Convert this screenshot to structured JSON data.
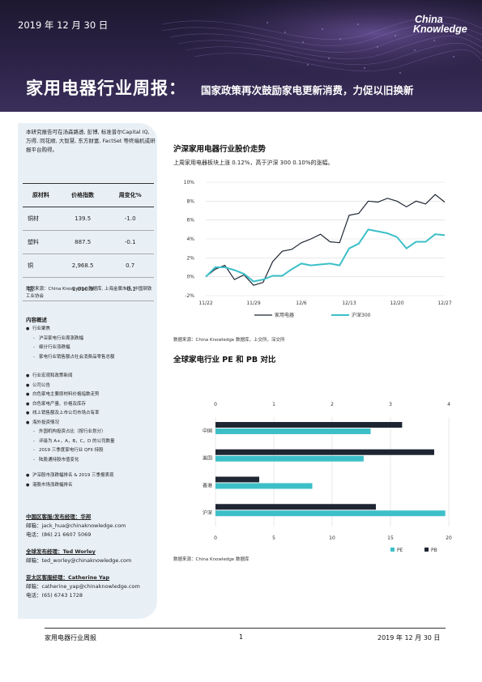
{
  "header": {
    "date": "2019 年 12 月 30 日",
    "logo_line1": "China",
    "logo_line2": "Knowledge",
    "title_main": "家用电器行业周报：",
    "title_sub": "国家政策再次鼓励家电更新消费，力促以旧换新"
  },
  "sidebar": {
    "intro": "本研究报告可在汤森路透, 彭博, 标准普尔Capital IQ, 万得, 同花顺, 大智慧, 东方财富, FactSet 等终端机或研报平台购得。",
    "table_headers": [
      "原材料",
      "价格指数",
      "周变化%"
    ],
    "table_rows": [
      {
        "name": "铜材",
        "price": "139.5",
        "change": "-1.0"
      },
      {
        "name": "塑料",
        "price": "887.5",
        "change": "-0.1"
      },
      {
        "name": "铜",
        "price": "2,968.5",
        "change": "0.7"
      },
      {
        "name": "铝",
        "price": "1,010.9",
        "change": "-0.1"
      }
    ],
    "table_source": "数据来源：China Knowledge 数据库, 上海金属市场, 中国钢铁工业协会",
    "toc_title": "内容概述",
    "toc_group1": [
      "行业聚焦",
      "沪深家电行业周涨跌幅",
      "细分行业涨跌幅",
      "家电行业销售额占社会消费品零售总额"
    ],
    "toc_group2": [
      "行业宏观和政策新闻",
      "公司公告",
      "白色家电主要原材料价格指数走势",
      "白色家电产量、价格及库存",
      "线上销售额及上市公司市场占有率",
      "海外投资情况",
      "外国机构投资占比（按行业划分）",
      "评级为 A+，A，B，C，D 的公司数量",
      "2019 三季度家电行业 QFII 持股",
      "陆股通持股市值变化"
    ],
    "toc_group3": [
      "沪深股市涨跌幅排名 & 2019 三季报表现",
      "港股市场涨跌幅排名"
    ],
    "contacts": [
      {
        "title": "中国区客服/发布经理：华邦",
        "email": "邮箱：jack_hua@chinaknowledge.com",
        "phone": "电话：(86) 21 6607 5069"
      },
      {
        "title": "全球发布经理：Ted Worley",
        "email": "邮箱：ted_worley@chinaknowledge.com",
        "phone": ""
      },
      {
        "title": "亚太区客服经理：Catherine Yap",
        "email": "邮箱：catherine_yap@chinaknowledge.com",
        "phone": "电话：(65) 6743 1728"
      }
    ]
  },
  "section1": {
    "heading": "沪深家用电器行业股价走势",
    "text": "上周家用电器板块上涨 0.12%，高于沪深 300 0.10%的涨幅。",
    "source": "数据来源：China Knowledge 数据库，上交所，深交所"
  },
  "section2": {
    "heading": "全球家电行业 PE 和 PB 对比",
    "source": "数据来源：China Knowledge 数据库"
  },
  "footer": {
    "left": "家用电器行业周报",
    "page": "1",
    "right": "2019 年 12 月 30 日"
  },
  "colors": {
    "dark": "#1f2633",
    "teal": "#3dbfc8"
  },
  "chart_data": [
    {
      "type": "line",
      "title": "",
      "x_tick_labels": [
        "11/22",
        "11/29",
        "12/6",
        "12/13",
        "12/20",
        "12/27"
      ],
      "y_ticks": [
        "-2%",
        "0%",
        "2%",
        "4%",
        "6%",
        "8%",
        "10%"
      ],
      "ylim": [
        -2,
        10
      ],
      "legend_position": "bottom",
      "series": [
        {
          "name": "家用电器",
          "color": "#1f2633",
          "values": [
            0.0,
            0.8,
            1.2,
            -0.3,
            0.2,
            -0.9,
            -0.6,
            1.6,
            2.7,
            2.9,
            3.6,
            4.0,
            4.5,
            3.7,
            3.6,
            6.5,
            6.7,
            8.0,
            7.9,
            8.3,
            8.0,
            7.4,
            8.0,
            7.7,
            8.7,
            7.9
          ]
        },
        {
          "name": "沪深300",
          "color": "#3dbfc8",
          "values": [
            0.0,
            1.0,
            1.0,
            0.7,
            0.3,
            -0.5,
            -0.3,
            0.1,
            0.1,
            0.8,
            1.4,
            1.2,
            1.3,
            1.4,
            1.2,
            3.0,
            3.5,
            5.0,
            4.8,
            4.6,
            4.2,
            3.0,
            3.7,
            3.7,
            4.5,
            4.4
          ]
        }
      ]
    },
    {
      "type": "bar",
      "orientation": "horizontal",
      "categories": [
        "中国",
        "美国",
        "香港",
        "沪深"
      ],
      "pb_axis_ticks": [
        "0",
        "1",
        "2",
        "3",
        "4"
      ],
      "pe_axis_ticks": [
        "0",
        "5",
        "10",
        "15",
        "20"
      ],
      "pb_range": [
        0,
        4
      ],
      "pe_range": [
        0,
        20
      ],
      "legend_position": "bottom-right",
      "series": [
        {
          "name": "PE",
          "color": "#3dbfc8",
          "axis": "bottom",
          "values": [
            13.3,
            12.7,
            8.3,
            19.7
          ]
        },
        {
          "name": "PB",
          "color": "#1f2633",
          "axis": "top",
          "values": [
            3.2,
            3.75,
            0.75,
            2.75
          ]
        }
      ]
    }
  ]
}
